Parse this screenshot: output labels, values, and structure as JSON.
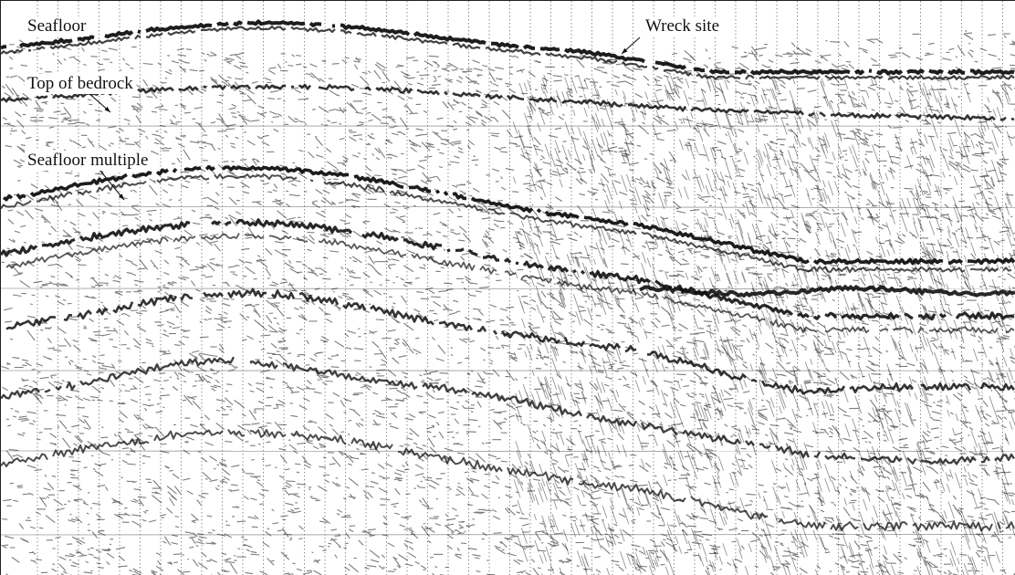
{
  "figure": {
    "title": "",
    "annotations": [
      {
        "id": "seafloor",
        "text": "Seafloor"
      },
      {
        "id": "bedrock",
        "text": "Top of bedrock"
      },
      {
        "id": "multiple",
        "text": "Seafloor multiple"
      },
      {
        "id": "wreck",
        "text": "Wreck site"
      }
    ]
  },
  "colors": {
    "background": "#ffffff",
    "ink": "#111111",
    "grid": "#555555"
  }
}
